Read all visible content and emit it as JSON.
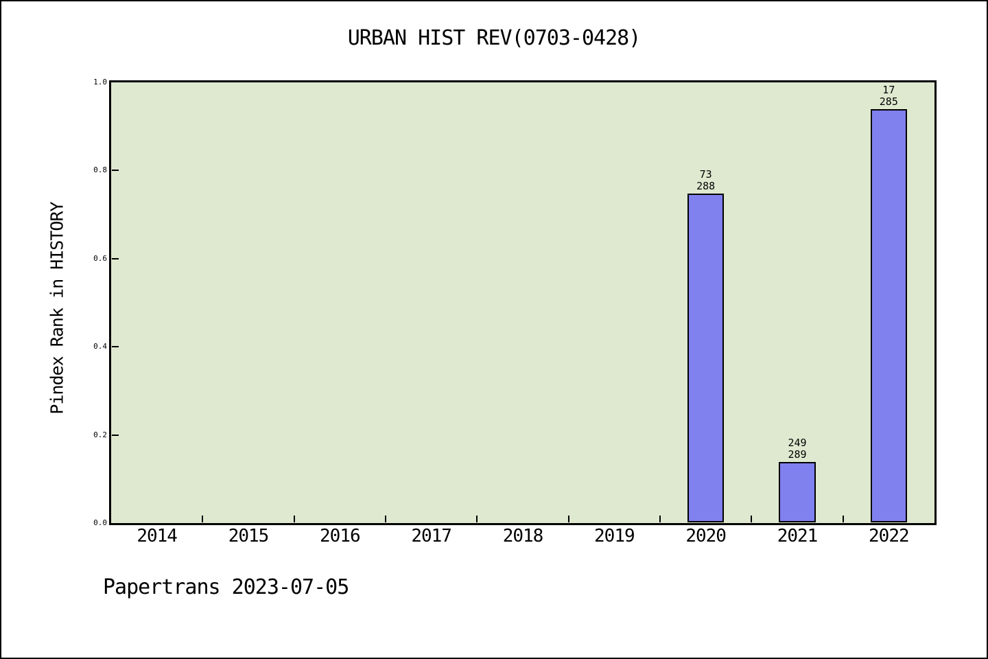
{
  "footer": {
    "text": "Papertrans 2023-07-05"
  },
  "colors": {
    "canvas_bg": "#ffffff",
    "plot_bg": "#dfe9d0",
    "bar_fill": "#8080ee",
    "bar_edge": "#000000",
    "axis": "#000000",
    "text": "#000000"
  },
  "chart_data": {
    "type": "bar",
    "title": "URBAN HIST REV(0703-0428)",
    "xlabel": "",
    "ylabel": "Pindex Rank in HISTORY",
    "xlim": [
      2013.5,
      2022.5
    ],
    "ylim": [
      0.0,
      1.0
    ],
    "grid": false,
    "legend": false,
    "x_ticks": [
      2014,
      2015,
      2016,
      2017,
      2018,
      2019,
      2020,
      2021,
      2022
    ],
    "x_tick_labels": [
      "2014",
      "2015",
      "2016",
      "2017",
      "2018",
      "2019",
      "2020",
      "2021",
      "2022"
    ],
    "y_ticks": [
      0.0,
      0.2,
      0.4,
      0.6,
      0.8,
      1.0
    ],
    "y_tick_labels": [
      "0.0",
      "0.2",
      "0.4",
      "0.6",
      "0.8",
      "1.0"
    ],
    "bar_width": 0.4,
    "bars": [
      {
        "x": 2020,
        "value": 0.747,
        "annotation_lines": [
          "73",
          "288"
        ]
      },
      {
        "x": 2021,
        "value": 0.138,
        "annotation_lines": [
          "249",
          "289"
        ]
      },
      {
        "x": 2022,
        "value": 0.94,
        "annotation_lines": [
          "17",
          "285"
        ]
      }
    ]
  }
}
